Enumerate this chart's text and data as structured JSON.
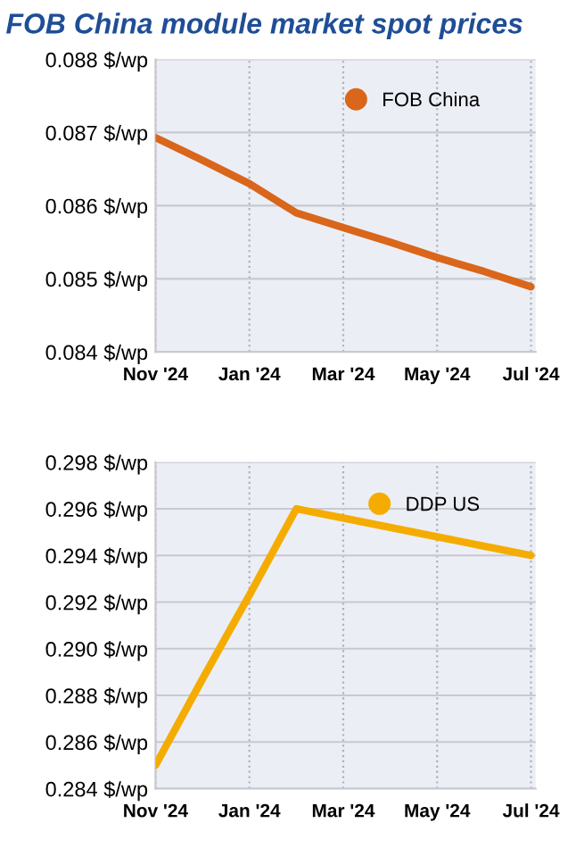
{
  "chart_data": [
    {
      "type": "line",
      "title": "FOB China module market spot prices",
      "categories": [
        "Nov '24",
        null,
        "Jan '24",
        null,
        "Mar '24",
        null,
        "May '24",
        null,
        "Jul '24"
      ],
      "series": [
        {
          "name": "FOB China",
          "color": "#d9661a",
          "values": [
            0.08693,
            0.08662,
            0.0863,
            0.0859,
            0.0857,
            0.0855,
            0.08529,
            0.0851,
            0.08489
          ]
        }
      ],
      "ylim": [
        0.084,
        0.088
      ],
      "yticks": [
        {
          "value": 0.084,
          "label": "0.084 $/wp"
        },
        {
          "value": 0.085,
          "label": "0.085 $/wp"
        },
        {
          "value": 0.086,
          "label": "0.086 $/wp"
        },
        {
          "value": 0.087,
          "label": "0.087 $/wp"
        },
        {
          "value": 0.088,
          "label": "0.088 $/wp"
        }
      ],
      "grid": true,
      "legend": "top right"
    },
    {
      "type": "line",
      "categories": [
        "Nov '24",
        null,
        "Jan '24",
        null,
        "Mar '24",
        null,
        "May '24",
        null,
        "Jul '24"
      ],
      "series": [
        {
          "name": "DDP US",
          "color": "#f5ac00",
          "values": [
            0.285,
            0.2887,
            0.2923,
            0.296,
            0.2956,
            0.2952,
            0.2948,
            0.2944,
            0.294
          ]
        }
      ],
      "ylim": [
        0.284,
        0.298
      ],
      "yticks": [
        {
          "value": 0.284,
          "label": "0.284 $/wp"
        },
        {
          "value": 0.286,
          "label": "0.286 $/wp"
        },
        {
          "value": 0.288,
          "label": "0.288 $/wp"
        },
        {
          "value": 0.29,
          "label": "0.290 $/wp"
        },
        {
          "value": 0.292,
          "label": "0.292 $/wp"
        },
        {
          "value": 0.294,
          "label": "0.294 $/wp"
        },
        {
          "value": 0.296,
          "label": "0.296 $/wp"
        },
        {
          "value": 0.298,
          "label": "0.298 $/wp"
        }
      ],
      "grid": true,
      "legend": "top right"
    }
  ]
}
